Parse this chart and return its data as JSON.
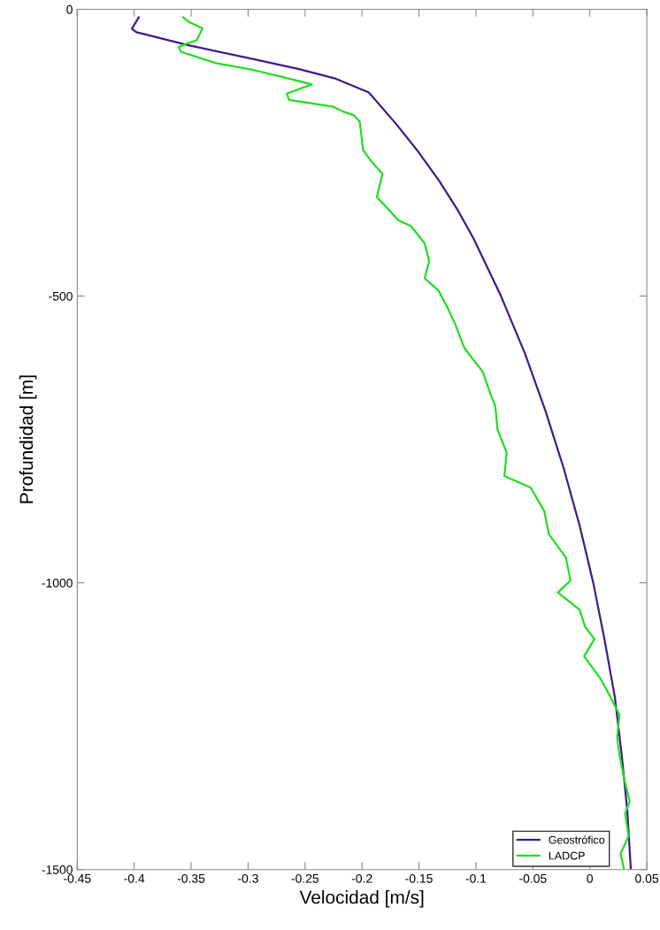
{
  "chart_data": {
    "type": "line",
    "xlabel": "Velocidad [m/s]",
    "ylabel": "Profundidad [m]",
    "xlim": [
      -0.45,
      0.05
    ],
    "xticks": [
      -0.45,
      -0.4,
      -0.35,
      -0.3,
      -0.25,
      -0.2,
      -0.15,
      -0.1,
      -0.05,
      0,
      0.05
    ],
    "ylim": [
      -1500,
      0
    ],
    "yticks": [
      -1500,
      -1000,
      -500,
      0
    ],
    "grid": false,
    "legend": "bottom right",
    "line_style": "solid",
    "marker": "none",
    "series": [
      {
        "name": "Geostrófico",
        "color": "#3f1a8c",
        "x": [
          -0.396,
          -0.402,
          -0.398,
          -0.354,
          -0.295,
          -0.256,
          -0.223,
          -0.194,
          -0.17,
          -0.15,
          -0.132,
          -0.116,
          -0.102,
          -0.078,
          -0.057,
          -0.039,
          -0.023,
          -0.009,
          0.003,
          0.013,
          0.022,
          0.028,
          0.033,
          0.036
        ],
        "values": [
          -14,
          -34,
          -40,
          -62,
          -87,
          -104,
          -121,
          -145,
          -200,
          -250,
          -300,
          -350,
          -400,
          -500,
          -600,
          -700,
          -800,
          -900,
          -1000,
          -1100,
          -1200,
          -1300,
          -1400,
          -1500
        ]
      },
      {
        "name": "LADCP",
        "color": "#22dd22",
        "x": [
          -0.357,
          -0.352,
          -0.34,
          -0.345,
          -0.354,
          -0.361,
          -0.359,
          -0.339,
          -0.328,
          -0.295,
          -0.264,
          -0.244,
          -0.266,
          -0.264,
          -0.225,
          -0.217,
          -0.207,
          -0.202,
          -0.199,
          -0.191,
          -0.182,
          -0.187,
          -0.168,
          -0.157,
          -0.145,
          -0.141,
          -0.145,
          -0.133,
          -0.125,
          -0.118,
          -0.11,
          -0.094,
          -0.087,
          -0.083,
          -0.081,
          -0.073,
          -0.075,
          -0.052,
          -0.04,
          -0.036,
          -0.021,
          -0.017,
          -0.028,
          -0.009,
          -0.004,
          0.004,
          -0.005,
          0.01,
          0.018,
          0.026,
          0.024,
          0.026,
          0.03,
          0.035,
          0.031,
          0.034,
          0.027,
          0.03
        ],
        "values": [
          -14,
          -22,
          -33,
          -54,
          -60,
          -66,
          -74,
          -87,
          -94,
          -106,
          -121,
          -131,
          -147,
          -158,
          -170,
          -178,
          -185,
          -196,
          -246,
          -267,
          -287,
          -327,
          -368,
          -378,
          -408,
          -439,
          -469,
          -490,
          -520,
          -550,
          -591,
          -632,
          -672,
          -692,
          -733,
          -773,
          -814,
          -834,
          -875,
          -915,
          -956,
          -996,
          -1017,
          -1047,
          -1077,
          -1098,
          -1128,
          -1169,
          -1199,
          -1230,
          -1270,
          -1300,
          -1341,
          -1381,
          -1402,
          -1442,
          -1472,
          -1500
        ]
      }
    ]
  }
}
